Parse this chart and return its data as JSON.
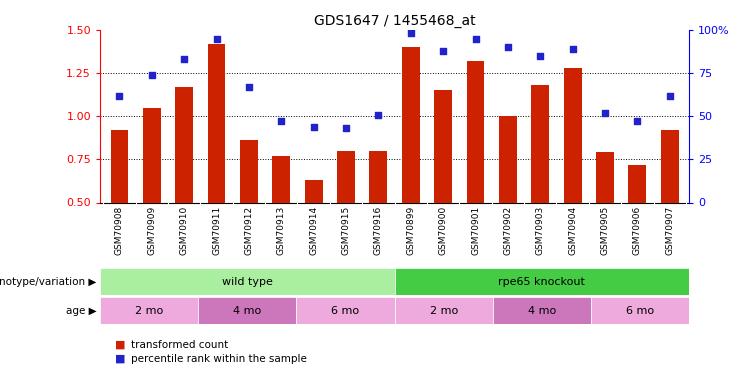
{
  "title": "GDS1647 / 1455468_at",
  "samples": [
    "GSM70908",
    "GSM70909",
    "GSM70910",
    "GSM70911",
    "GSM70912",
    "GSM70913",
    "GSM70914",
    "GSM70915",
    "GSM70916",
    "GSM70899",
    "GSM70900",
    "GSM70901",
    "GSM70902",
    "GSM70903",
    "GSM70904",
    "GSM70905",
    "GSM70906",
    "GSM70907"
  ],
  "bar_values": [
    0.92,
    1.05,
    1.17,
    1.42,
    0.86,
    0.77,
    0.63,
    0.8,
    0.8,
    1.4,
    1.15,
    1.32,
    1.0,
    1.18,
    1.28,
    0.79,
    0.72,
    0.92
  ],
  "scatter_values": [
    62,
    74,
    83,
    95,
    67,
    47,
    44,
    43,
    51,
    98,
    88,
    95,
    90,
    85,
    89,
    52,
    47,
    62
  ],
  "bar_color": "#cc2200",
  "scatter_color": "#2222cc",
  "ylim_left": [
    0.5,
    1.5
  ],
  "ylim_right": [
    0,
    100
  ],
  "yticks_left": [
    0.5,
    0.75,
    1.0,
    1.25,
    1.5
  ],
  "yticks_right": [
    0,
    25,
    50,
    75,
    100
  ],
  "ytick_labels_right": [
    "0",
    "25",
    "50",
    "75",
    "100%"
  ],
  "hlines": [
    0.75,
    1.0,
    1.25
  ],
  "genotype_groups": [
    {
      "label": "wild type",
      "start": 0,
      "end": 9,
      "color": "#aaeea0"
    },
    {
      "label": "rpe65 knockout",
      "start": 9,
      "end": 18,
      "color": "#44cc44"
    }
  ],
  "age_groups": [
    {
      "label": "2 mo",
      "start": 0,
      "end": 3,
      "color": "#eeaadd"
    },
    {
      "label": "4 mo",
      "start": 3,
      "end": 6,
      "color": "#cc77bb"
    },
    {
      "label": "6 mo",
      "start": 6,
      "end": 9,
      "color": "#eeaadd"
    },
    {
      "label": "2 mo",
      "start": 9,
      "end": 12,
      "color": "#eeaadd"
    },
    {
      "label": "4 mo",
      "start": 12,
      "end": 15,
      "color": "#cc77bb"
    },
    {
      "label": "6 mo",
      "start": 15,
      "end": 18,
      "color": "#eeaadd"
    }
  ],
  "legend_bar_label": "transformed count",
  "legend_scatter_label": "percentile rank within the sample",
  "genotype_label": "genotype/variation",
  "age_label": "age",
  "xtick_bg": "#cccccc",
  "plot_bg": "#ffffff"
}
